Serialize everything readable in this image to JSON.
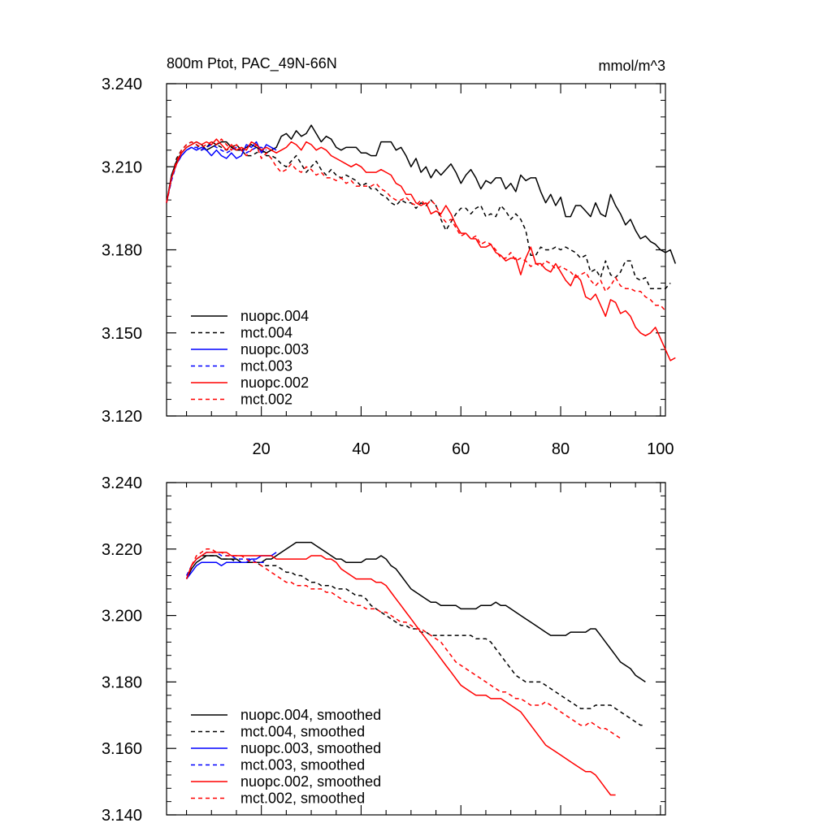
{
  "chart_data": [
    {
      "type": "line",
      "title": "800m Ptot, PAC_49N-66N",
      "units": "mmol/m^3",
      "xlim": [
        1,
        101
      ],
      "ylim": [
        3.12,
        3.24
      ],
      "xticks": [
        20,
        40,
        60,
        80,
        100
      ],
      "yticks": [
        "3.120",
        "3.150",
        "3.180",
        "3.210",
        "3.240"
      ],
      "ytick_values": [
        3.12,
        3.15,
        3.18,
        3.21,
        3.24
      ],
      "legend": [
        "nuopc.004",
        "mct.004",
        "nuopc.003",
        "mct.003",
        "nuopc.002",
        "mct.002"
      ],
      "series": [
        {
          "name": "nuopc.004",
          "color": "#000000",
          "dash": "solid",
          "x_start": 1,
          "values": [
            3.197,
            3.207,
            3.212,
            3.215,
            3.217,
            3.218,
            3.219,
            3.218,
            3.216,
            3.217,
            3.218,
            3.219,
            3.219,
            3.217,
            3.216,
            3.216,
            3.217,
            3.218,
            3.217,
            3.216,
            3.215,
            3.216,
            3.217,
            3.221,
            3.222,
            3.22,
            3.223,
            3.221,
            3.222,
            3.225,
            3.222,
            3.219,
            3.221,
            3.22,
            3.217,
            3.216,
            3.217,
            3.217,
            3.217,
            3.215,
            3.215,
            3.214,
            3.214,
            3.219,
            3.219,
            3.219,
            3.216,
            3.217,
            3.214,
            3.21,
            3.213,
            3.208,
            3.21,
            3.206,
            3.209,
            3.207,
            3.209,
            3.211,
            3.208,
            3.204,
            3.207,
            3.209,
            3.206,
            3.202,
            3.205,
            3.204,
            3.206,
            3.206,
            3.202,
            3.204,
            3.201,
            3.207,
            3.205,
            3.206,
            3.206,
            3.201,
            3.197,
            3.2,
            3.196,
            3.199,
            3.192,
            3.192,
            3.196,
            3.196,
            3.194,
            3.192,
            3.197,
            3.193,
            3.192,
            3.2,
            3.196,
            3.193,
            3.189,
            3.191,
            3.187,
            3.184,
            3.185,
            3.183,
            3.182,
            3.18,
            3.179,
            3.18,
            3.175
          ]
        },
        {
          "name": "mct.004",
          "color": "#000000",
          "dash": "dashed",
          "x_start": 1,
          "values": [
            3.197,
            3.206,
            3.213,
            3.216,
            3.218,
            3.219,
            3.218,
            3.216,
            3.217,
            3.219,
            3.218,
            3.217,
            3.216,
            3.217,
            3.218,
            3.216,
            3.214,
            3.214,
            3.215,
            3.216,
            3.214,
            3.214,
            3.213,
            3.211,
            3.21,
            3.212,
            3.214,
            3.211,
            3.208,
            3.21,
            3.212,
            3.209,
            3.207,
            3.209,
            3.207,
            3.206,
            3.207,
            3.206,
            3.205,
            3.203,
            3.204,
            3.202,
            3.202,
            3.2,
            3.199,
            3.197,
            3.196,
            3.198,
            3.197,
            3.197,
            3.195,
            3.197,
            3.196,
            3.198,
            3.196,
            3.191,
            3.187,
            3.19,
            3.193,
            3.195,
            3.195,
            3.193,
            3.195,
            3.196,
            3.192,
            3.193,
            3.192,
            3.196,
            3.194,
            3.191,
            3.193,
            3.191,
            3.187,
            3.178,
            3.178,
            3.181,
            3.18,
            3.18,
            3.181,
            3.18,
            3.181,
            3.18,
            3.179,
            3.177,
            3.178,
            3.172,
            3.173,
            3.17,
            3.176,
            3.171,
            3.17,
            3.172,
            3.176,
            3.176,
            3.17,
            3.169,
            3.17,
            3.166,
            3.166,
            3.166,
            3.166,
            3.168
          ]
        },
        {
          "name": "nuopc.003",
          "color": "#0000ff",
          "dash": "solid",
          "x_start": 1,
          "values": [
            3.197,
            3.206,
            3.211,
            3.214,
            3.216,
            3.217,
            3.216,
            3.217,
            3.216,
            3.214,
            3.216,
            3.214,
            3.213,
            3.215,
            3.213,
            3.214,
            3.218,
            3.217,
            3.219,
            3.215,
            3.218,
            3.217,
            3.216
          ]
        },
        {
          "name": "mct.003",
          "color": "#0000ff",
          "dash": "dashed",
          "x_start": 1,
          "values": [
            3.197,
            3.205,
            3.211,
            3.214,
            3.216,
            3.217,
            3.217,
            3.216,
            3.217,
            3.218,
            3.217,
            3.216,
            3.215,
            3.216,
            3.217,
            3.216,
            3.215,
            3.216,
            3.217,
            3.217,
            3.216
          ]
        },
        {
          "name": "nuopc.002",
          "color": "#ff0000",
          "dash": "solid",
          "x_start": 1,
          "values": [
            3.197,
            3.206,
            3.211,
            3.215,
            3.217,
            3.218,
            3.219,
            3.218,
            3.219,
            3.218,
            3.22,
            3.218,
            3.216,
            3.218,
            3.216,
            3.217,
            3.216,
            3.219,
            3.218,
            3.216,
            3.217,
            3.216,
            3.215,
            3.216,
            3.217,
            3.219,
            3.218,
            3.216,
            3.219,
            3.218,
            3.216,
            3.217,
            3.216,
            3.214,
            3.213,
            3.212,
            3.211,
            3.21,
            3.211,
            3.21,
            3.208,
            3.208,
            3.208,
            3.209,
            3.208,
            3.207,
            3.204,
            3.203,
            3.2,
            3.2,
            3.197,
            3.196,
            3.197,
            3.193,
            3.194,
            3.193,
            3.196,
            3.193,
            3.189,
            3.186,
            3.186,
            3.184,
            3.184,
            3.181,
            3.181,
            3.182,
            3.179,
            3.178,
            3.176,
            3.177,
            3.177,
            3.171,
            3.177,
            3.181,
            3.175,
            3.175,
            3.173,
            3.172,
            3.175,
            3.172,
            3.169,
            3.167,
            3.171,
            3.169,
            3.163,
            3.162,
            3.164,
            3.16,
            3.156,
            3.162,
            3.161,
            3.157,
            3.158,
            3.156,
            3.152,
            3.15,
            3.149,
            3.15,
            3.152,
            3.148,
            3.144,
            3.14,
            3.141
          ]
        },
        {
          "name": "mct.002",
          "color": "#ff0000",
          "dash": "dashed",
          "x_start": 1,
          "values": [
            3.197,
            3.206,
            3.212,
            3.216,
            3.218,
            3.219,
            3.218,
            3.217,
            3.218,
            3.219,
            3.218,
            3.22,
            3.218,
            3.216,
            3.218,
            3.216,
            3.214,
            3.216,
            3.218,
            3.213,
            3.215,
            3.213,
            3.21,
            3.208,
            3.209,
            3.211,
            3.209,
            3.208,
            3.21,
            3.209,
            3.207,
            3.208,
            3.206,
            3.206,
            3.205,
            3.206,
            3.204,
            3.205,
            3.203,
            3.203,
            3.203,
            3.203,
            3.204,
            3.202,
            3.201,
            3.199,
            3.198,
            3.198,
            3.199,
            3.197,
            3.196,
            3.198,
            3.196,
            3.198,
            3.196,
            3.192,
            3.19,
            3.191,
            3.188,
            3.185,
            3.186,
            3.184,
            3.185,
            3.182,
            3.183,
            3.182,
            3.18,
            3.177,
            3.177,
            3.179,
            3.176,
            3.177,
            3.176,
            3.174,
            3.175,
            3.174,
            3.176,
            3.175,
            3.173,
            3.174,
            3.173,
            3.172,
            3.17,
            3.171,
            3.172,
            3.169,
            3.167,
            3.169,
            3.165,
            3.167,
            3.17,
            3.167,
            3.166,
            3.166,
            3.165,
            3.165,
            3.163,
            3.162,
            3.16,
            3.16,
            3.158
          ]
        }
      ]
    },
    {
      "type": "line",
      "title": "",
      "xlim": [
        1,
        101
      ],
      "ylim": [
        3.14,
        3.24
      ],
      "yticks": [
        "3.140",
        "3.160",
        "3.180",
        "3.200",
        "3.220",
        "3.240"
      ],
      "ytick_values": [
        3.14,
        3.16,
        3.18,
        3.2,
        3.22,
        3.24
      ],
      "legend": [
        "nuopc.004, smoothed",
        "mct.004, smoothed",
        "nuopc.003, smoothed",
        "mct.003, smoothed",
        "nuopc.002, smoothed",
        "mct.002, smoothed"
      ],
      "series": [
        {
          "name": "nuopc.004, smoothed",
          "color": "#000000",
          "dash": "solid",
          "x_start": 5,
          "values": [
            3.211,
            3.214,
            3.216,
            3.217,
            3.218,
            3.218,
            3.218,
            3.217,
            3.217,
            3.217,
            3.217,
            3.216,
            3.216,
            3.216,
            3.216,
            3.216,
            3.217,
            3.217,
            3.218,
            3.219,
            3.22,
            3.221,
            3.222,
            3.222,
            3.222,
            3.222,
            3.221,
            3.22,
            3.219,
            3.218,
            3.217,
            3.217,
            3.216,
            3.216,
            3.216,
            3.216,
            3.217,
            3.217,
            3.217,
            3.218,
            3.217,
            3.215,
            3.214,
            3.212,
            3.21,
            3.208,
            3.207,
            3.206,
            3.205,
            3.204,
            3.204,
            3.203,
            3.203,
            3.203,
            3.203,
            3.202,
            3.202,
            3.202,
            3.202,
            3.203,
            3.203,
            3.203,
            3.204,
            3.203,
            3.203,
            3.202,
            3.201,
            3.2,
            3.199,
            3.198,
            3.197,
            3.196,
            3.195,
            3.194,
            3.194,
            3.194,
            3.194,
            3.195,
            3.195,
            3.195,
            3.195,
            3.196,
            3.196,
            3.194,
            3.192,
            3.19,
            3.188,
            3.186,
            3.185,
            3.184,
            3.182,
            3.181,
            3.18
          ]
        },
        {
          "name": "mct.004, smoothed",
          "color": "#000000",
          "dash": "dashed",
          "x_start": 5,
          "values": [
            3.211,
            3.215,
            3.217,
            3.218,
            3.218,
            3.218,
            3.218,
            3.217,
            3.217,
            3.217,
            3.216,
            3.216,
            3.216,
            3.216,
            3.216,
            3.215,
            3.215,
            3.215,
            3.215,
            3.214,
            3.213,
            3.213,
            3.212,
            3.212,
            3.211,
            3.21,
            3.21,
            3.209,
            3.209,
            3.209,
            3.208,
            3.208,
            3.208,
            3.207,
            3.206,
            3.206,
            3.205,
            3.203,
            3.202,
            3.201,
            3.2,
            3.199,
            3.198,
            3.197,
            3.197,
            3.196,
            3.196,
            3.195,
            3.195,
            3.194,
            3.194,
            3.194,
            3.194,
            3.194,
            3.194,
            3.194,
            3.194,
            3.194,
            3.193,
            3.193,
            3.193,
            3.192,
            3.19,
            3.188,
            3.186,
            3.184,
            3.182,
            3.181,
            3.18,
            3.18,
            3.18,
            3.18,
            3.179,
            3.178,
            3.177,
            3.176,
            3.175,
            3.174,
            3.173,
            3.172,
            3.172,
            3.172,
            3.173,
            3.173,
            3.173,
            3.173,
            3.172,
            3.171,
            3.17,
            3.169,
            3.168,
            3.167,
            3.167
          ]
        },
        {
          "name": "nuopc.003, smoothed",
          "color": "#0000ff",
          "dash": "solid",
          "x_start": 5,
          "values": [
            3.211,
            3.213,
            3.215,
            3.216,
            3.216,
            3.216,
            3.216,
            3.215,
            3.216,
            3.216,
            3.216,
            3.216,
            3.216,
            3.217,
            3.217,
            3.218,
            3.218,
            3.218,
            3.219
          ]
        },
        {
          "name": "mct.003, smoothed",
          "color": "#0000ff",
          "dash": "dashed",
          "x_start": 5,
          "values": [
            3.212,
            3.215,
            3.217,
            3.218,
            3.219,
            3.219,
            3.219,
            3.218,
            3.218,
            3.218,
            3.217,
            3.217,
            3.217,
            3.217,
            3.216,
            3.216,
            3.216
          ]
        },
        {
          "name": "nuopc.002, smoothed",
          "color": "#ff0000",
          "dash": "solid",
          "x_start": 5,
          "values": [
            3.211,
            3.215,
            3.217,
            3.218,
            3.219,
            3.219,
            3.219,
            3.219,
            3.219,
            3.218,
            3.218,
            3.218,
            3.218,
            3.218,
            3.218,
            3.218,
            3.218,
            3.218,
            3.217,
            3.217,
            3.217,
            3.217,
            3.217,
            3.217,
            3.217,
            3.218,
            3.218,
            3.218,
            3.217,
            3.217,
            3.216,
            3.214,
            3.213,
            3.212,
            3.211,
            3.211,
            3.211,
            3.211,
            3.21,
            3.21,
            3.209,
            3.207,
            3.205,
            3.203,
            3.201,
            3.199,
            3.197,
            3.195,
            3.193,
            3.191,
            3.189,
            3.187,
            3.185,
            3.183,
            3.181,
            3.179,
            3.178,
            3.177,
            3.176,
            3.176,
            3.176,
            3.175,
            3.175,
            3.175,
            3.174,
            3.173,
            3.172,
            3.171,
            3.169,
            3.167,
            3.165,
            3.163,
            3.161,
            3.16,
            3.159,
            3.158,
            3.157,
            3.156,
            3.155,
            3.154,
            3.153,
            3.153,
            3.152,
            3.15,
            3.148,
            3.146,
            3.146
          ]
        },
        {
          "name": "mct.002, smoothed",
          "color": "#ff0000",
          "dash": "dashed",
          "x_start": 5,
          "values": [
            3.211,
            3.215,
            3.218,
            3.219,
            3.22,
            3.22,
            3.219,
            3.219,
            3.218,
            3.218,
            3.218,
            3.218,
            3.217,
            3.216,
            3.216,
            3.215,
            3.214,
            3.213,
            3.212,
            3.211,
            3.21,
            3.21,
            3.209,
            3.209,
            3.209,
            3.208,
            3.208,
            3.208,
            3.207,
            3.207,
            3.206,
            3.205,
            3.204,
            3.204,
            3.203,
            3.203,
            3.202,
            3.202,
            3.202,
            3.201,
            3.201,
            3.2,
            3.199,
            3.198,
            3.198,
            3.197,
            3.196,
            3.196,
            3.195,
            3.194,
            3.193,
            3.192,
            3.19,
            3.188,
            3.186,
            3.185,
            3.184,
            3.183,
            3.182,
            3.181,
            3.18,
            3.179,
            3.178,
            3.177,
            3.177,
            3.176,
            3.175,
            3.175,
            3.174,
            3.173,
            3.173,
            3.173,
            3.174,
            3.173,
            3.172,
            3.171,
            3.17,
            3.169,
            3.168,
            3.167,
            3.167,
            3.168,
            3.167,
            3.166,
            3.166,
            3.165,
            3.164,
            3.163
          ]
        }
      ]
    }
  ]
}
